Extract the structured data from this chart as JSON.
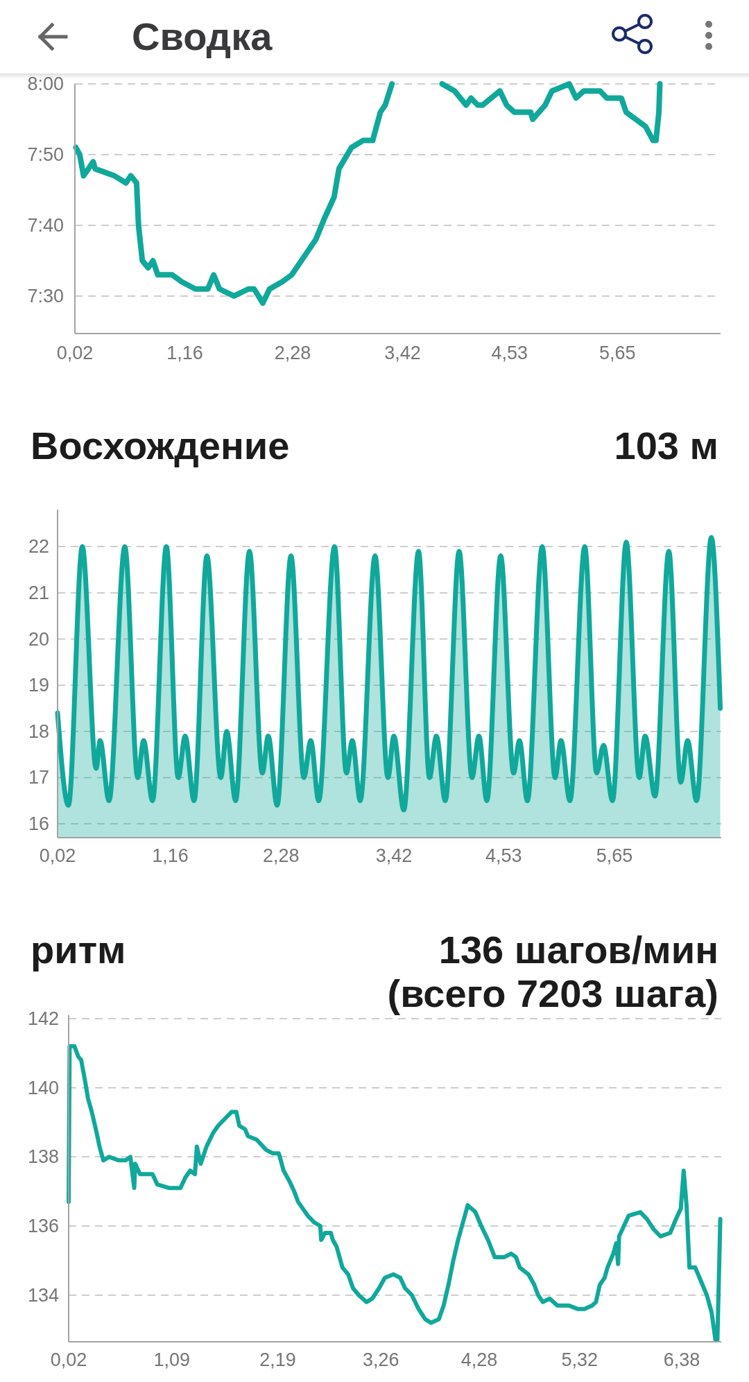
{
  "chart_data": [
    {
      "type": "line",
      "title": "Сводка",
      "x": [
        0.03,
        0.07,
        0.11,
        0.21,
        0.23,
        0.43,
        0.55,
        0.6,
        0.66,
        0.68,
        0.72,
        0.78,
        0.83,
        0.88,
        1.03,
        1.13,
        1.27,
        1.37,
        1.4,
        1.46,
        1.52,
        1.67,
        1.82,
        1.88,
        1.97,
        2.04,
        2.17,
        2.27,
        2.37,
        2.52,
        2.61,
        2.71,
        2.76,
        2.89,
        3.01,
        3.11,
        3.19,
        3.24,
        3.31,
        3.5,
        3.83,
        3.96,
        4.08,
        4.13,
        4.2,
        4.25,
        4.43,
        4.5,
        4.58,
        4.75,
        4.77,
        4.9,
        4.97,
        5.15,
        5.22,
        5.3,
        5.4,
        5.47,
        5.54,
        5.69,
        5.74,
        5.84,
        5.94,
        6.02,
        6.05,
        6.08,
        6.09
      ],
      "series": [
        {
          "color": "#10a89b",
          "values": [
            471,
            470,
            467,
            469,
            468,
            467,
            466,
            467,
            466,
            460,
            455,
            454,
            455,
            453,
            453,
            452,
            451,
            451,
            451,
            453,
            451,
            450,
            451,
            451,
            449,
            451,
            452,
            453,
            455,
            458,
            461,
            464,
            468,
            471,
            472,
            472,
            476,
            477,
            480,
            null,
            480,
            479,
            477,
            478,
            477,
            477,
            479,
            477,
            476,
            476,
            475,
            477,
            479,
            480,
            478,
            479,
            479,
            479,
            478,
            478,
            476,
            475,
            474,
            472,
            472,
            476,
            480
          ]
        }
      ],
      "xlim": [
        0.02,
        6.72
      ],
      "ylim": [
        444.7,
        480
      ],
      "xticks": [
        {
          "value": 0.02,
          "label": "0,02"
        },
        {
          "value": 1.16,
          "label": "1,16"
        },
        {
          "value": 2.28,
          "label": "2,28"
        },
        {
          "value": 3.42,
          "label": "3,42"
        },
        {
          "value": 4.53,
          "label": "4,53"
        },
        {
          "value": 5.65,
          "label": "5,65"
        }
      ],
      "yticks": [
        {
          "value": 450,
          "label": "7:30"
        },
        {
          "value": 460,
          "label": "7:40"
        },
        {
          "value": 470,
          "label": "7:50"
        },
        {
          "value": 480,
          "label": "8:00"
        }
      ],
      "grid": "y"
    },
    {
      "type": "area",
      "title": "Восхождение",
      "subtitle": "103 м",
      "x": [
        0.02,
        0.13,
        0.27,
        0.41,
        0.45,
        0.54,
        0.7,
        0.83,
        0.89,
        0.98,
        1.12,
        1.24,
        1.31,
        1.4,
        1.53,
        1.67,
        1.73,
        1.82,
        1.96,
        2.09,
        2.15,
        2.24,
        2.38,
        2.51,
        2.58,
        2.66,
        2.82,
        2.94,
        3.0,
        3.08,
        3.23,
        3.36,
        3.42,
        3.52,
        3.67,
        3.78,
        3.85,
        3.94,
        4.08,
        4.21,
        4.28,
        4.36,
        4.5,
        4.63,
        4.69,
        4.77,
        4.92,
        5.05,
        5.11,
        5.2,
        5.35,
        5.47,
        5.54,
        5.63,
        5.77,
        5.9,
        5.96,
        6.06,
        6.2,
        6.32,
        6.39,
        6.48,
        6.63,
        6.72
      ],
      "series": [
        {
          "color": "#10a89b",
          "values": [
            18.4,
            16.4,
            22.0,
            17.2,
            17.8,
            16.5,
            22.0,
            17.0,
            17.8,
            16.5,
            22.0,
            17.0,
            17.9,
            16.5,
            21.8,
            17.0,
            18.0,
            16.5,
            21.9,
            17.1,
            17.9,
            16.4,
            21.8,
            17.0,
            17.8,
            16.5,
            22.0,
            17.1,
            17.8,
            16.5,
            21.8,
            17.0,
            17.9,
            16.3,
            21.9,
            17.0,
            17.9,
            16.5,
            21.9,
            17.0,
            17.9,
            16.5,
            21.8,
            17.1,
            17.8,
            16.5,
            22.0,
            17.0,
            17.8,
            16.5,
            22.0,
            17.1,
            17.7,
            16.5,
            22.1,
            17.0,
            17.9,
            16.6,
            21.9,
            16.9,
            17.8,
            16.5,
            22.2,
            18.5
          ]
        }
      ],
      "xlim": [
        0.02,
        6.73
      ],
      "ylim": [
        15.7,
        22.8
      ],
      "xticks": [
        {
          "value": 0.02,
          "label": "0,02"
        },
        {
          "value": 1.16,
          "label": "1,16"
        },
        {
          "value": 2.28,
          "label": "2,28"
        },
        {
          "value": 3.42,
          "label": "3,42"
        },
        {
          "value": 4.53,
          "label": "4,53"
        },
        {
          "value": 5.65,
          "label": "5,65"
        }
      ],
      "yticks": [
        16,
        17,
        18,
        19,
        20,
        21,
        22
      ],
      "grid": "y"
    },
    {
      "type": "line",
      "title": "ритм",
      "subtitle": "136 шагов/мин (всего 7203 шага)",
      "x": [
        0.02,
        0.03,
        0.08,
        0.12,
        0.15,
        0.19,
        0.22,
        0.26,
        0.31,
        0.34,
        0.38,
        0.44,
        0.54,
        0.61,
        0.66,
        0.7,
        0.71,
        0.76,
        0.89,
        0.94,
        1.06,
        1.18,
        1.23,
        1.28,
        1.33,
        1.35,
        1.39,
        1.45,
        1.52,
        1.57,
        1.64,
        1.71,
        1.76,
        1.79,
        1.85,
        1.88,
        1.97,
        2.07,
        2.14,
        2.2,
        2.25,
        2.31,
        2.36,
        2.4,
        2.45,
        2.5,
        2.57,
        2.63,
        2.64,
        2.68,
        2.74,
        2.76,
        2.8,
        2.86,
        2.92,
        2.97,
        3.03,
        3.11,
        3.17,
        3.24,
        3.3,
        3.39,
        3.46,
        3.51,
        3.58,
        3.65,
        3.72,
        3.78,
        3.86,
        3.91,
        3.96,
        4.01,
        4.06,
        4.1,
        4.16,
        4.24,
        4.3,
        4.37,
        4.44,
        4.54,
        4.61,
        4.66,
        4.7,
        4.79,
        4.85,
        4.89,
        4.94,
        5.01,
        5.09,
        5.21,
        5.3,
        5.37,
        5.45,
        5.49,
        5.53,
        5.58,
        5.61,
        5.67,
        5.7,
        5.72,
        5.73,
        5.78,
        5.83,
        5.95,
        6.02,
        6.09,
        6.16,
        6.26,
        6.32,
        6.37,
        6.4,
        6.43,
        6.46,
        6.52,
        6.58,
        6.64,
        6.69,
        6.73,
        6.75,
        6.78
      ],
      "series": [
        {
          "color": "#10a89b",
          "values": [
            136.7,
            141.2,
            141.2,
            140.9,
            140.8,
            140.2,
            139.7,
            139.3,
            138.7,
            138.3,
            137.9,
            138.0,
            137.9,
            137.9,
            138.0,
            137.1,
            137.8,
            137.5,
            137.5,
            137.2,
            137.1,
            137.1,
            137.4,
            137.6,
            137.5,
            138.3,
            137.8,
            138.3,
            138.7,
            138.9,
            139.1,
            139.3,
            139.3,
            138.9,
            138.8,
            138.6,
            138.5,
            138.2,
            138.1,
            138.1,
            137.6,
            137.3,
            137.0,
            136.7,
            136.5,
            136.3,
            136.1,
            136.0,
            135.6,
            135.8,
            135.8,
            135.6,
            135.4,
            134.8,
            134.6,
            134.2,
            134.0,
            133.8,
            133.9,
            134.2,
            134.5,
            134.6,
            134.5,
            134.2,
            134.0,
            133.6,
            133.3,
            133.2,
            133.3,
            133.7,
            134.3,
            135.0,
            135.6,
            136.0,
            136.6,
            136.4,
            136.0,
            135.6,
            135.1,
            135.1,
            135.2,
            135.1,
            134.8,
            134.6,
            134.3,
            134.0,
            133.8,
            133.9,
            133.7,
            133.7,
            133.6,
            133.6,
            133.7,
            133.8,
            134.3,
            134.5,
            134.8,
            135.2,
            135.5,
            134.9,
            135.7,
            136.0,
            136.3,
            136.4,
            136.2,
            135.9,
            135.7,
            135.8,
            136.2,
            136.5,
            137.6,
            136.6,
            134.8,
            134.8,
            134.4,
            134.0,
            133.5,
            132.7,
            132.7,
            136.2
          ]
        }
      ],
      "xlim": [
        0.02,
        6.79
      ],
      "ylim": [
        132.65,
        142.1
      ],
      "xticks": [
        {
          "value": 0.02,
          "label": "0,02"
        },
        {
          "value": 1.09,
          "label": "1,09"
        },
        {
          "value": 2.19,
          "label": "2,19"
        },
        {
          "value": 3.26,
          "label": "3,26"
        },
        {
          "value": 4.28,
          "label": "4,28"
        },
        {
          "value": 5.32,
          "label": "5,32"
        },
        {
          "value": 6.38,
          "label": "6,38"
        }
      ],
      "yticks": [
        134,
        136,
        138,
        140,
        142
      ],
      "grid": "y"
    }
  ]
}
